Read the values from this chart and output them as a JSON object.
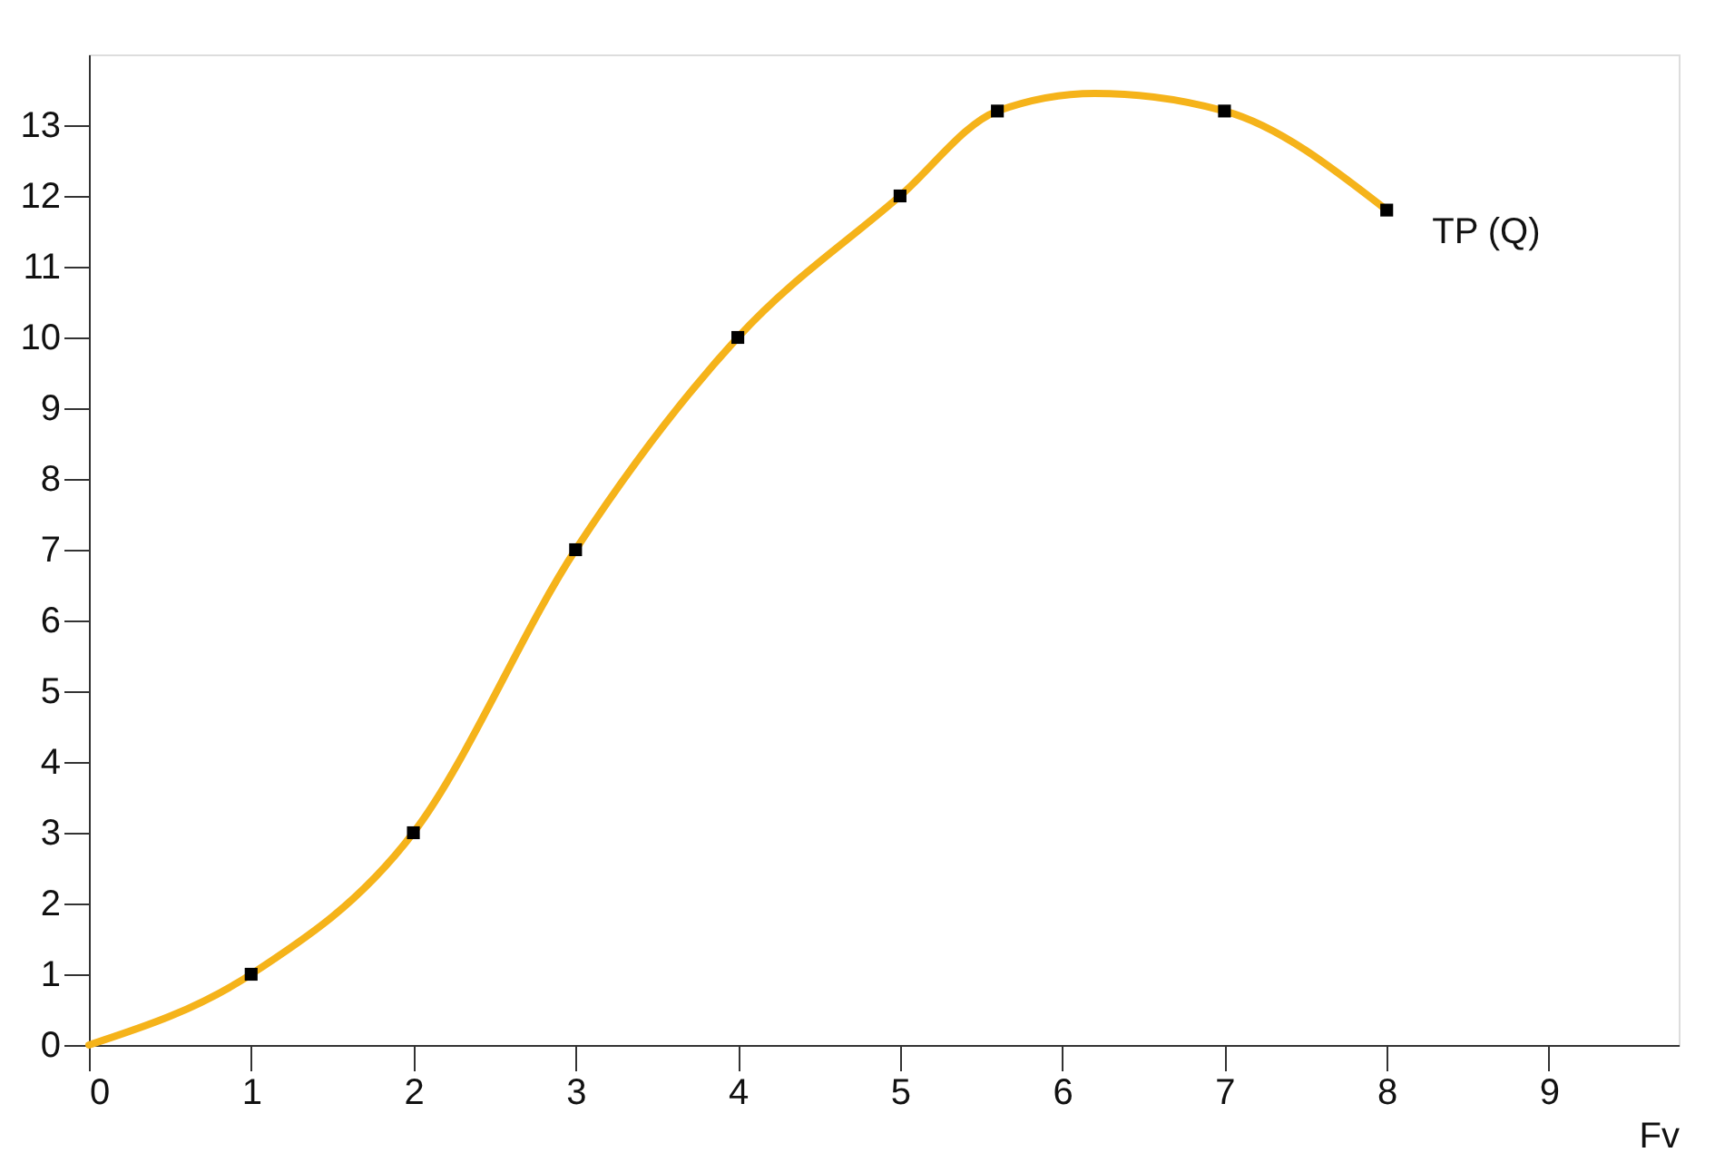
{
  "chart_data": {
    "type": "line",
    "xlabel": "Fv",
    "series": [
      {
        "color": "#f5b31a",
        "marker": "none",
        "line_style": "solid",
        "x": [
          0,
          1,
          2,
          3,
          4,
          5,
          5.6,
          6.2,
          7,
          8
        ],
        "values": [
          0,
          1,
          3,
          7,
          10,
          12,
          13.2,
          13.45,
          13.2,
          11.8
        ]
      },
      {
        "type": "scatter",
        "color": "#000000",
        "marker": "square",
        "x": [
          1,
          2,
          3,
          4,
          5,
          5.6,
          7,
          8
        ],
        "values": [
          1,
          3,
          7,
          10,
          12,
          13.2,
          13.2,
          11.8
        ]
      }
    ],
    "annotations": [
      {
        "text": "TP (Q)",
        "x": 8,
        "y": 11.8
      }
    ],
    "xlim": [
      0,
      9.8
    ],
    "ylim": [
      0,
      14
    ],
    "xticks": [
      0,
      1,
      2,
      3,
      4,
      5,
      6,
      7,
      8,
      9
    ],
    "yticks": [
      0,
      1,
      2,
      3,
      4,
      5,
      6,
      7,
      8,
      9,
      10,
      11,
      12,
      13
    ],
    "grid": false
  }
}
